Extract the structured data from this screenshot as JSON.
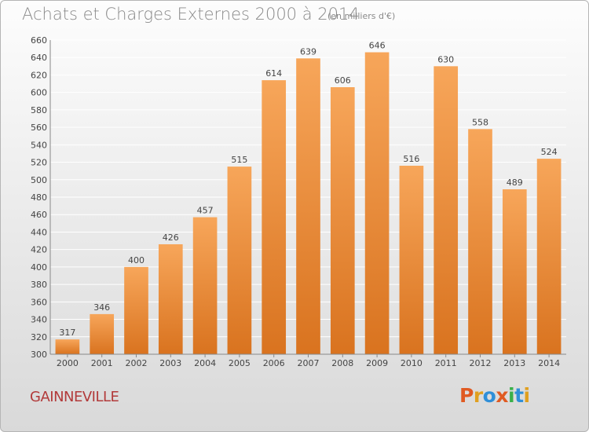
{
  "header": {
    "title": "Achats et Charges Externes 2000 à 2014",
    "subtitle": "(en milliers d'€)"
  },
  "footer": {
    "commune": "GAINNEVILLE",
    "logo": {
      "text": "Proxiti",
      "colors": [
        "#e05a22",
        "#e0a020",
        "#2f8fd8",
        "#e05a22",
        "#3ab04a",
        "#2f8fd8",
        "#e0a020"
      ]
    }
  },
  "colors": {
    "bar_light": "#f7a65a",
    "bar_dark": "#d9731f",
    "grid": "#ffffff",
    "label": "#444444"
  },
  "chart_data": {
    "type": "bar",
    "title": "Achats et Charges Externes 2000 à 2014",
    "subtitle": "(en milliers d'€)",
    "categories": [
      "2000",
      "2001",
      "2002",
      "2003",
      "2004",
      "2005",
      "2006",
      "2007",
      "2008",
      "2009",
      "2010",
      "2011",
      "2012",
      "2013",
      "2014"
    ],
    "values": [
      317,
      346,
      400,
      426,
      457,
      515,
      614,
      639,
      606,
      646,
      516,
      630,
      558,
      489,
      524
    ],
    "xlabel": "",
    "ylabel": "",
    "ylim": [
      300,
      660
    ],
    "yticks": [
      300,
      320,
      340,
      360,
      380,
      400,
      420,
      440,
      460,
      480,
      500,
      520,
      540,
      560,
      580,
      600,
      620,
      640,
      660
    ],
    "grid": true,
    "data_labels": true
  }
}
